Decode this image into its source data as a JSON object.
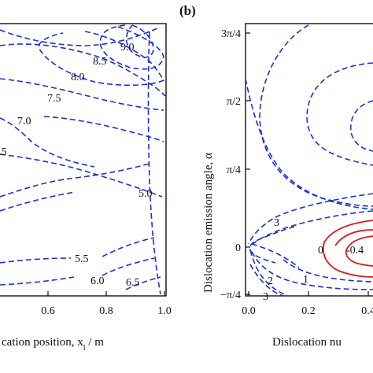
{
  "chart_data": [
    {
      "type": "contour",
      "panel_label": "",
      "xlabel": "cation position, x",
      "xlabel_sub": "l",
      "xlabel_suffix": " / m",
      "x_ticks": [
        "0.6",
        "0.8",
        "1.0"
      ],
      "x_tick_values": [
        0.6,
        0.8,
        1.0
      ],
      "xlim": [
        0.4,
        1.0
      ],
      "contour_levels": [
        "9.0",
        "8.5",
        "8.0",
        "7.5",
        "7.0",
        ".5",
        "5.0",
        "5.5",
        "6.0",
        "6.5"
      ],
      "line_style": "dashed",
      "line_color": "#1f2fd0",
      "grid": false
    },
    {
      "type": "contour",
      "panel_label": "(b)",
      "ylabel": "Dislocation emission angle, α",
      "xlabel": "Dislocation nu",
      "y_ticks": [
        "3π/4",
        "π/2",
        "π/4",
        "0",
        "−π/4"
      ],
      "y_tick_values": [
        2.356,
        1.571,
        0.785,
        0,
        -0.785
      ],
      "ylim": [
        -0.785,
        2.356
      ],
      "x_ticks": [
        "0.0",
        "0.2",
        "0.4"
      ],
      "x_tick_values": [
        0.0,
        0.2,
        0.4
      ],
      "contour_levels_dashed": [
        "3",
        "2",
        "1",
        "3"
      ],
      "contour_levels_solid": [
        "0",
        "-0.4"
      ],
      "dashed_color": "#1f2fd0",
      "solid_color": "#e01818",
      "grid": false
    }
  ]
}
